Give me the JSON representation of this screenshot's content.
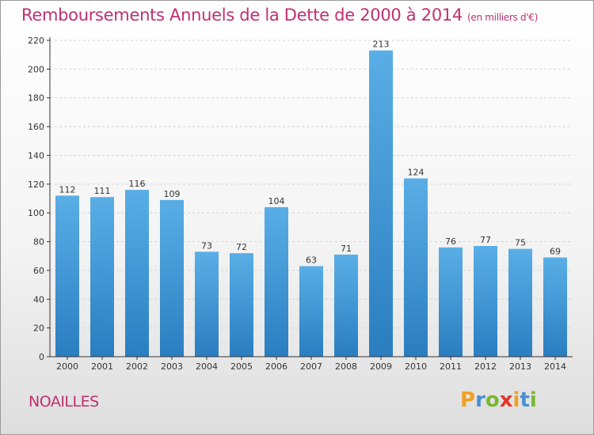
{
  "header": {
    "title": "Remboursements Annuels de la Dette de 2000 à 2014",
    "unit": "(en milliers d'€)"
  },
  "footer": {
    "place": "NOAILLES",
    "logo_letters": [
      "P",
      "r",
      "o",
      "x",
      "i",
      "t",
      "i"
    ],
    "logo_colors": [
      "#f0a020",
      "#4a90d0",
      "#7ab830",
      "#e0362c",
      "#f0a020",
      "#4a90d0",
      "#7ab830"
    ]
  },
  "chart_data": {
    "type": "bar",
    "title": "Remboursements Annuels de la Dette de 2000 à 2014",
    "subtitle": "(en milliers d'€)",
    "categories": [
      "2000",
      "2001",
      "2002",
      "2003",
      "2004",
      "2005",
      "2006",
      "2007",
      "2008",
      "2009",
      "2010",
      "2011",
      "2012",
      "2013",
      "2014"
    ],
    "values": [
      112,
      111,
      116,
      109,
      73,
      72,
      104,
      63,
      71,
      213,
      124,
      76,
      77,
      75,
      69
    ],
    "ylim": [
      0,
      220
    ],
    "yticks": [
      0,
      20,
      40,
      60,
      80,
      100,
      120,
      140,
      160,
      180,
      200,
      220
    ],
    "grid": true,
    "bar_color_top": "#5aaee6",
    "bar_color_bottom": "#2a7ec0"
  }
}
